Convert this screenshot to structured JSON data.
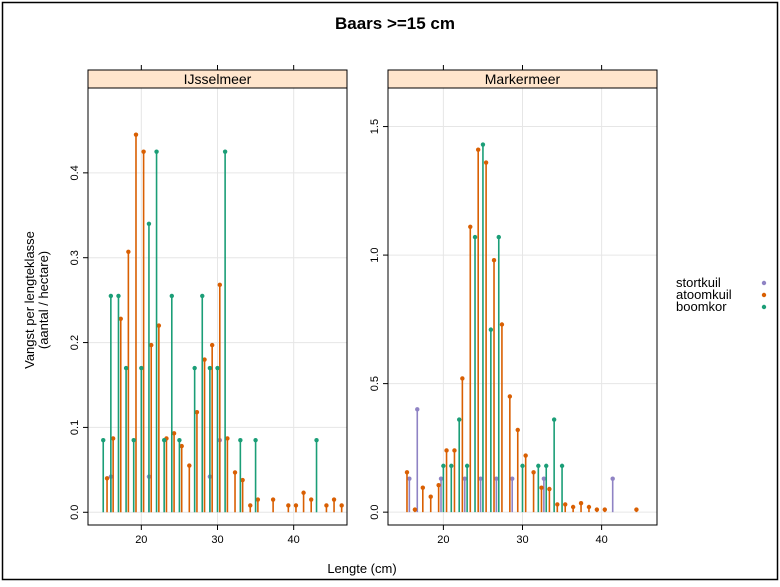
{
  "chart_data": {
    "type": "lollipop",
    "title": "Baars >=15 cm",
    "xlabel": "Lengte (cm)",
    "ylabel_line1": "Vangst per lengteklasse",
    "ylabel_line2": "(aantal / hectare)",
    "legend_placement": "right",
    "grid": true,
    "series_names": [
      "stortkuil",
      "atoomkuil",
      "boomkor"
    ],
    "colors": {
      "stortkuil": "#8f83c4",
      "atoomkuil": "#d95f02",
      "boomkor": "#1b9e77",
      "strip": "#ffe5cc",
      "grid": "#e6e6e6"
    },
    "panels": [
      {
        "name": "IJsselmeer",
        "xlim": [
          13,
          47
        ],
        "ylim": [
          -0.015,
          0.5
        ],
        "x_ticks": [
          20,
          30,
          40
        ],
        "y_ticks": [
          0.0,
          0.1,
          0.2,
          0.3,
          0.4
        ],
        "y_tick_labels": [
          "0.0",
          "0.1",
          "0.2",
          "0.3",
          "0.4"
        ],
        "series": [
          {
            "name": "stortkuil",
            "points": [
              [
                16,
                0.042
              ],
              [
                21,
                0.042
              ],
              [
                29,
                0.042
              ],
              [
                30.3,
                0.085
              ]
            ]
          },
          {
            "name": "atoomkuil",
            "points": [
              [
                15.5,
                0.04
              ],
              [
                16.3,
                0.087
              ],
              [
                17.3,
                0.228
              ],
              [
                18.3,
                0.307
              ],
              [
                19.3,
                0.445
              ],
              [
                20.3,
                0.425
              ],
              [
                21.3,
                0.197
              ],
              [
                22.3,
                0.22
              ],
              [
                23.3,
                0.087
              ],
              [
                24.3,
                0.093
              ],
              [
                25.3,
                0.078
              ],
              [
                26.3,
                0.055
              ],
              [
                27.3,
                0.118
              ],
              [
                28.3,
                0.18
              ],
              [
                29.3,
                0.197
              ],
              [
                30.3,
                0.268
              ],
              [
                31.3,
                0.087
              ],
              [
                32.3,
                0.047
              ],
              [
                33.3,
                0.038
              ],
              [
                34.3,
                0.008
              ],
              [
                35.3,
                0.015
              ],
              [
                37.3,
                0.015
              ],
              [
                39.3,
                0.008
              ],
              [
                40.3,
                0.008
              ],
              [
                41.3,
                0.023
              ],
              [
                42.3,
                0.015
              ],
              [
                44.3,
                0.008
              ],
              [
                45.3,
                0.015
              ],
              [
                46.3,
                0.008
              ]
            ]
          },
          {
            "name": "boomkor",
            "points": [
              [
                15,
                0.085
              ],
              [
                16,
                0.255
              ],
              [
                17,
                0.255
              ],
              [
                18,
                0.17
              ],
              [
                19,
                0.085
              ],
              [
                20,
                0.17
              ],
              [
                21,
                0.34
              ],
              [
                22,
                0.425
              ],
              [
                23,
                0.085
              ],
              [
                24,
                0.255
              ],
              [
                25,
                0.085
              ],
              [
                27,
                0.17
              ],
              [
                28,
                0.255
              ],
              [
                29,
                0.17
              ],
              [
                30,
                0.17
              ],
              [
                31,
                0.425
              ],
              [
                33,
                0.085
              ],
              [
                35,
                0.085
              ],
              [
                43,
                0.085
              ]
            ]
          }
        ]
      },
      {
        "name": "Markermeer",
        "xlim": [
          13,
          47
        ],
        "ylim": [
          -0.05,
          1.65
        ],
        "x_ticks": [
          20,
          30,
          40
        ],
        "y_ticks": [
          0.0,
          0.5,
          1.0,
          1.5
        ],
        "y_tick_labels": [
          "0.0",
          "0.5",
          "1.0",
          "1.5"
        ],
        "series": [
          {
            "name": "stortkuil",
            "points": [
              [
                15.7,
                0.13
              ],
              [
                16.7,
                0.4
              ],
              [
                19.7,
                0.13
              ],
              [
                22.7,
                0.13
              ],
              [
                24.7,
                0.13
              ],
              [
                26.7,
                0.13
              ],
              [
                28.7,
                0.13
              ],
              [
                32.7,
                0.13
              ],
              [
                41.4,
                0.13
              ]
            ]
          },
          {
            "name": "atoomkuil",
            "points": [
              [
                15.4,
                0.155
              ],
              [
                16.4,
                0.01
              ],
              [
                17.4,
                0.095
              ],
              [
                18.4,
                0.06
              ],
              [
                19.4,
                0.105
              ],
              [
                20.4,
                0.24
              ],
              [
                21.4,
                0.24
              ],
              [
                22.4,
                0.52
              ],
              [
                23.4,
                1.11
              ],
              [
                24.4,
                1.41
              ],
              [
                25.4,
                1.36
              ],
              [
                26.4,
                0.98
              ],
              [
                27.4,
                0.73
              ],
              [
                28.4,
                0.45
              ],
              [
                29.4,
                0.32
              ],
              [
                30.4,
                0.22
              ],
              [
                31.4,
                0.155
              ],
              [
                32.4,
                0.095
              ],
              [
                33.4,
                0.09
              ],
              [
                34.4,
                0.03
              ],
              [
                35.4,
                0.03
              ],
              [
                36.4,
                0.02
              ],
              [
                37.4,
                0.035
              ],
              [
                38.4,
                0.02
              ],
              [
                39.4,
                0.01
              ],
              [
                40.4,
                0.01
              ],
              [
                44.4,
                0.01
              ]
            ]
          },
          {
            "name": "boomkor",
            "points": [
              [
                20,
                0.18
              ],
              [
                21,
                0.18
              ],
              [
                22,
                0.36
              ],
              [
                23,
                0.18
              ],
              [
                24,
                1.07
              ],
              [
                25,
                1.43
              ],
              [
                26,
                0.71
              ],
              [
                27,
                1.07
              ],
              [
                30,
                0.18
              ],
              [
                32,
                0.18
              ],
              [
                33,
                0.18
              ],
              [
                34,
                0.36
              ],
              [
                35,
                0.18
              ]
            ]
          }
        ]
      }
    ]
  }
}
